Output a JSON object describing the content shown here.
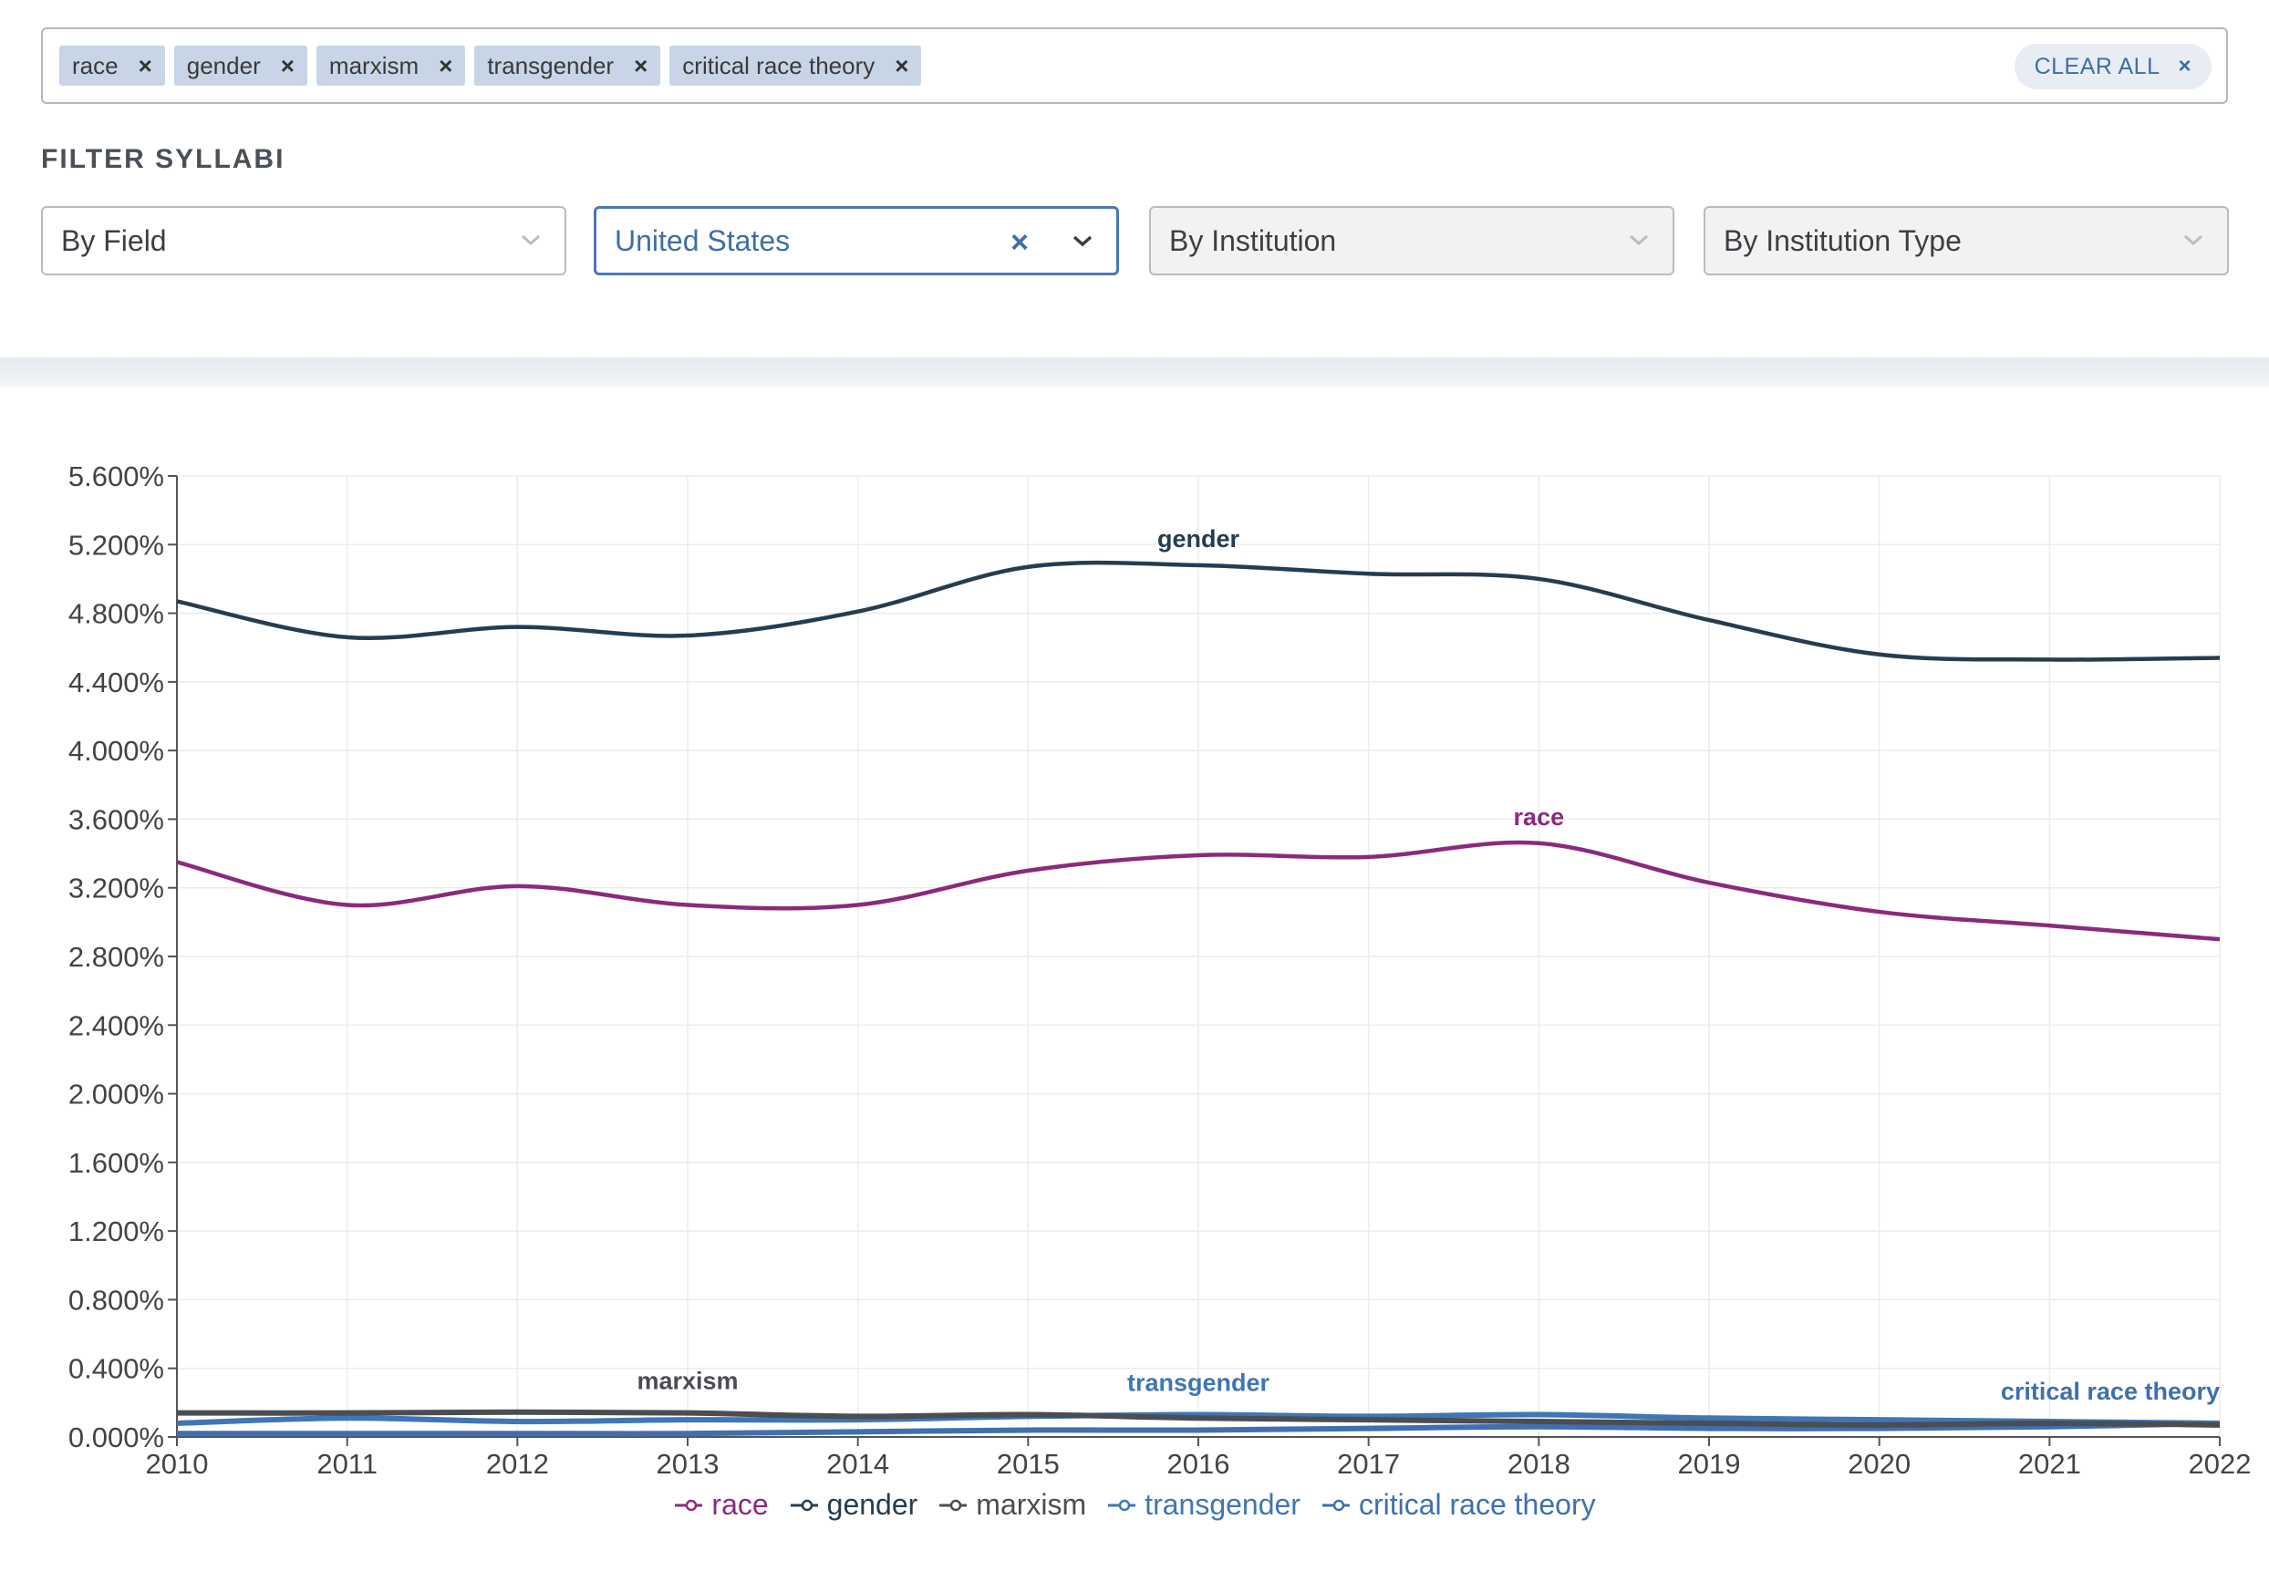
{
  "search": {
    "chips": [
      {
        "label": "race"
      },
      {
        "label": "gender"
      },
      {
        "label": "marxism"
      },
      {
        "label": "transgender"
      },
      {
        "label": "critical race theory"
      }
    ],
    "clear_all_label": "CLEAR ALL",
    "remove_glyph": "×"
  },
  "filters": {
    "title": "FILTER SYLLABI",
    "field": {
      "label": "By Field"
    },
    "country": {
      "value": "United States"
    },
    "institution": {
      "label": "By Institution"
    },
    "institution_type": {
      "label": "By Institution Type"
    }
  },
  "colors": {
    "race": "#8b2a7d",
    "gender": "#263d4f",
    "marxism": "#4a4d52",
    "transgender": "#3f76b5",
    "critical race theory": "#3f6fb0",
    "accent": "#3f6ea6"
  },
  "chart_data": {
    "type": "line",
    "x": [
      2010,
      2011,
      2012,
      2013,
      2014,
      2015,
      2016,
      2017,
      2018,
      2019,
      2020,
      2021,
      2022
    ],
    "y_ticks": [
      "0.000%",
      "0.400%",
      "0.800%",
      "1.200%",
      "1.600%",
      "2.000%",
      "2.400%",
      "2.800%",
      "3.200%",
      "3.600%",
      "4.000%",
      "4.400%",
      "4.800%",
      "5.200%",
      "5.600%"
    ],
    "x_ticks": [
      "2010",
      "2011",
      "2012",
      "2013",
      "2014",
      "2015",
      "2016",
      "2017",
      "2018",
      "2019",
      "2020",
      "2021",
      "2022"
    ],
    "ylim": [
      0,
      5.6
    ],
    "grid": true,
    "legend": "bottom-center",
    "series": [
      {
        "name": "race",
        "values": [
          3.35,
          3.1,
          3.21,
          3.1,
          3.1,
          3.3,
          3.39,
          3.38,
          3.46,
          3.23,
          3.06,
          2.98,
          2.9
        ],
        "label_at": 8
      },
      {
        "name": "gender",
        "values": [
          4.87,
          4.66,
          4.72,
          4.67,
          4.81,
          5.07,
          5.08,
          5.03,
          5.0,
          4.76,
          4.56,
          4.53,
          4.54
        ],
        "label_at": 6
      },
      {
        "name": "marxism",
        "values": [
          0.14,
          0.14,
          0.145,
          0.14,
          0.12,
          0.13,
          0.11,
          0.1,
          0.09,
          0.08,
          0.07,
          0.08,
          0.07
        ],
        "label_at": 3
      },
      {
        "name": "transgender",
        "values": [
          0.08,
          0.11,
          0.09,
          0.1,
          0.1,
          0.12,
          0.13,
          0.12,
          0.13,
          0.11,
          0.1,
          0.09,
          0.08
        ],
        "label_at": 6
      },
      {
        "name": "critical race theory",
        "values": [
          0.02,
          0.02,
          0.02,
          0.02,
          0.03,
          0.04,
          0.04,
          0.05,
          0.06,
          0.05,
          0.05,
          0.06,
          0.08
        ],
        "label_at": 12
      }
    ]
  }
}
